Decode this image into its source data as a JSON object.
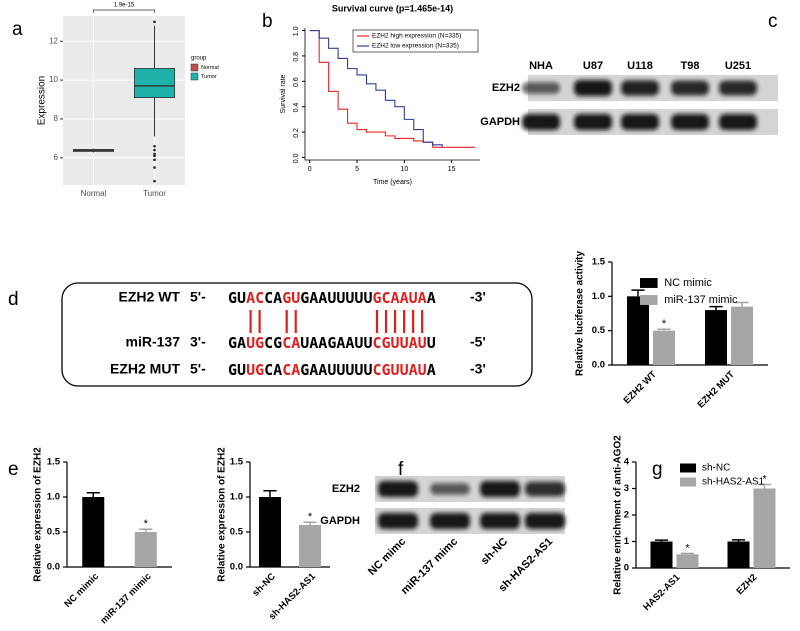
{
  "chart_data": [
    {
      "panel": "a",
      "type": "box",
      "ylabel": "Expression",
      "categories": [
        "Normal",
        "Tumor"
      ],
      "colors": [
        "#c0504d",
        "#20b2aa"
      ],
      "boxes": [
        {
          "min": 6.28,
          "q1": 6.33,
          "median": 6.38,
          "q3": 6.43,
          "max": 6.48,
          "outliers": []
        },
        {
          "min": 7.1,
          "q1": 9.1,
          "median": 9.7,
          "q3": 10.6,
          "max": 12.8,
          "outliers": [
            13.0,
            6.6,
            6.4,
            6.2,
            6.1,
            5.9,
            5.5,
            4.8
          ]
        }
      ],
      "ylim": [
        4.6,
        13.3
      ],
      "yticks": [
        6,
        8,
        10,
        12
      ],
      "grid": true,
      "annotation": "1.9e-15",
      "legend_title": "group",
      "legend": "right"
    },
    {
      "panel": "b",
      "type": "line",
      "step": true,
      "title": "Survival curve (p=1.465e-14)",
      "xlabel": "Time (years)",
      "ylabel": "Survival rate",
      "x": [
        0,
        1,
        2,
        3,
        4,
        5,
        6,
        7,
        8,
        9,
        10,
        11,
        12,
        13,
        14,
        15,
        17.5
      ],
      "series": [
        {
          "name": "EZH2 high expression (N=335)",
          "color": "#e8262a",
          "values": [
            1,
            0.75,
            0.52,
            0.38,
            0.27,
            0.22,
            0.2,
            0.2,
            0.17,
            0.15,
            0.15,
            0.13,
            0.12,
            0.08,
            0.08,
            0.08,
            0.08
          ]
        },
        {
          "name": "EZH2 low expression (N=335)",
          "color": "#2e3d98",
          "values": [
            1,
            0.94,
            0.86,
            0.78,
            0.7,
            0.65,
            0.58,
            0.53,
            0.45,
            0.4,
            0.3,
            0.22,
            0.12,
            0.1,
            0.08,
            null,
            null
          ]
        }
      ],
      "xlim": [
        -0.5,
        18
      ],
      "xticks": [
        0,
        5,
        10,
        15
      ],
      "ylim": [
        -0.02,
        1.02
      ],
      "yticks": [
        {
          "value": 0,
          "label": "0.0"
        },
        0.2,
        0.4,
        0.6,
        0.8,
        {
          "value": 1,
          "label": "1.0"
        }
      ],
      "legend": "upper right"
    },
    {
      "type": "bar",
      "ylabel": "Relative luciferase activity",
      "categories": [
        "EZH2 WT",
        "EZH2 MUT"
      ],
      "series": [
        {
          "name": "NC mimic",
          "color": "#000000",
          "values": [
            1.0,
            0.8
          ],
          "errors": [
            0.09,
            0.05
          ]
        },
        {
          "name": "miR-137 mimic",
          "color": "#a6a6a6",
          "values": [
            0.5,
            0.85
          ],
          "errors": [
            0.02,
            0.06
          ],
          "annotations": [
            "*",
            null
          ]
        }
      ],
      "ylim": [
        0,
        1.5
      ],
      "yticks": [
        {
          "value": 0,
          "label": "0.0"
        },
        0.5,
        {
          "value": 1,
          "label": "1.0"
        },
        1.5
      ],
      "legend": "top"
    },
    {
      "panel": "e",
      "type": "bar",
      "ylabel": "Relative expression of EZH2",
      "categories": [
        "NC mimic",
        "miR-137 mimic"
      ],
      "values": [
        1.0,
        0.5
      ],
      "errors": [
        0.06,
        0.04
      ],
      "colors": [
        "#000000",
        "#a6a6a6"
      ],
      "annotations": [
        null,
        "*"
      ],
      "ylim": [
        0,
        1.5
      ],
      "yticks": [
        {
          "value": 0,
          "label": "0.0"
        },
        0.5,
        {
          "value": 1,
          "label": "1.0"
        },
        1.5
      ]
    },
    {
      "type": "bar",
      "ylabel": "Relative expression of EZH2",
      "categories": [
        "sh-NC",
        "sh-HAS2-AS1"
      ],
      "values": [
        1.0,
        0.6
      ],
      "errors": [
        0.09,
        0.04
      ],
      "colors": [
        "#000000",
        "#a6a6a6"
      ],
      "annotations": [
        null,
        "*"
      ],
      "ylim": [
        0,
        1.5
      ],
      "yticks": [
        {
          "value": 0,
          "label": "0.0"
        },
        0.5,
        {
          "value": 1,
          "label": "1.0"
        },
        1.5
      ]
    },
    {
      "panel": "g",
      "type": "bar",
      "ylabel": "Relative enrichment of anti-AGO2",
      "categories": [
        "HAS2-AS1",
        "EZH2"
      ],
      "series": [
        {
          "name": "sh-NC",
          "color": "#000000",
          "values": [
            1.0,
            1.0
          ],
          "errors": [
            0.05,
            0.06
          ]
        },
        {
          "name": "sh-HAS2-AS1",
          "color": "#a6a6a6",
          "values": [
            0.52,
            3.0
          ],
          "errors": [
            0.03,
            0.15
          ],
          "annotations": [
            "*",
            "*"
          ]
        }
      ],
      "ylim": [
        0,
        4
      ],
      "yticks": [
        0,
        1,
        2,
        3,
        4
      ],
      "legend": "top"
    }
  ],
  "blots": [
    {
      "panel": "c",
      "lanes": [
        "NHA",
        "U87",
        "U118",
        "T98",
        "U251"
      ],
      "rows": [
        "EZH2",
        "GAPDH"
      ]
    },
    {
      "panel": "f",
      "lanes": [
        "NC mimc",
        "miR-137 mimc",
        "sh-NC",
        "sh-HAS2-AS1"
      ],
      "rows": [
        "EZH2",
        "GAPDH"
      ]
    }
  ],
  "sequence": {
    "panel": "d",
    "rows": [
      {
        "label": "EZH2 WT",
        "prefix": "5'-",
        "segments": [
          {
            "text": "GU",
            "red": false
          },
          {
            "text": "AC",
            "red": true
          },
          {
            "text": "CA",
            "red": false
          },
          {
            "text": "GU",
            "red": true
          },
          {
            "text": "GAAUUUUU",
            "red": false
          },
          {
            "text": "GCAAUA",
            "red": true
          },
          {
            "text": "A",
            "red": false
          }
        ],
        "suffix": "-3'"
      },
      {
        "label": "miR-137",
        "prefix": "3'-",
        "segments": [
          {
            "text": "GA",
            "red": false
          },
          {
            "text": "UG",
            "red": true
          },
          {
            "text": "CG",
            "red": false
          },
          {
            "text": "CA",
            "red": true
          },
          {
            "text": "UAAGAAUU",
            "red": false
          },
          {
            "text": "CGUUAU",
            "red": true
          },
          {
            "text": "U",
            "red": false
          }
        ],
        "suffix": "-5'"
      },
      {
        "label": "EZH2 MUT",
        "prefix": "5'-",
        "segments": [
          {
            "text": "GU",
            "red": false
          },
          {
            "text": "UG",
            "red": true
          },
          {
            "text": "CA",
            "red": false
          },
          {
            "text": "CA",
            "red": true
          },
          {
            "text": "GAAUUUUU",
            "red": false
          },
          {
            "text": "CGUUAU",
            "red": true
          },
          {
            "text": "A",
            "red": false
          }
        ],
        "suffix": "-3'"
      }
    ]
  }
}
